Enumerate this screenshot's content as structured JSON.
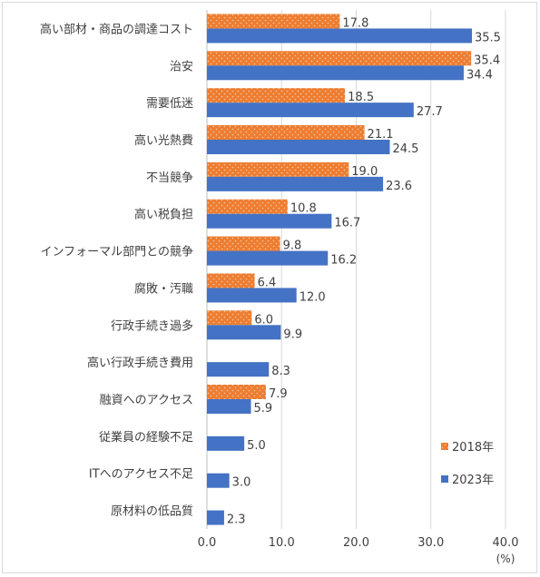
{
  "chart_data": {
    "type": "bar",
    "orientation": "horizontal",
    "categories": [
      "高い部材・商品の調達コスト",
      "治安",
      "需要低迷",
      "高い光熱費",
      "不当競争",
      "高い税負担",
      "インフォーマル部門との競争",
      "腐敗・汚職",
      "行政手続き過多",
      "高い行政手続き費用",
      "融資へのアクセス",
      "従業員の経験不足",
      "ITへのアクセス不足",
      "原材料の低品質"
    ],
    "series": [
      {
        "name": "2018年",
        "color": "#ed7d31",
        "pattern": "dotted",
        "values": [
          17.8,
          35.4,
          18.5,
          21.1,
          19.0,
          10.8,
          9.8,
          6.4,
          6.0,
          null,
          7.9,
          null,
          null,
          null
        ]
      },
      {
        "name": "2023年",
        "color": "#4472c4",
        "values": [
          35.5,
          34.4,
          27.7,
          24.5,
          23.6,
          16.7,
          16.2,
          12.0,
          9.9,
          8.3,
          5.9,
          5.0,
          3.0,
          2.3
        ]
      }
    ],
    "xlim": [
      0,
      40
    ],
    "xticks": [
      "0.0",
      "10.0",
      "20.0",
      "30.0",
      "40.0"
    ],
    "unit_label": "(%)",
    "grid": "vertical",
    "legend": "bottom-right",
    "title": "",
    "xlabel": "",
    "ylabel": ""
  }
}
